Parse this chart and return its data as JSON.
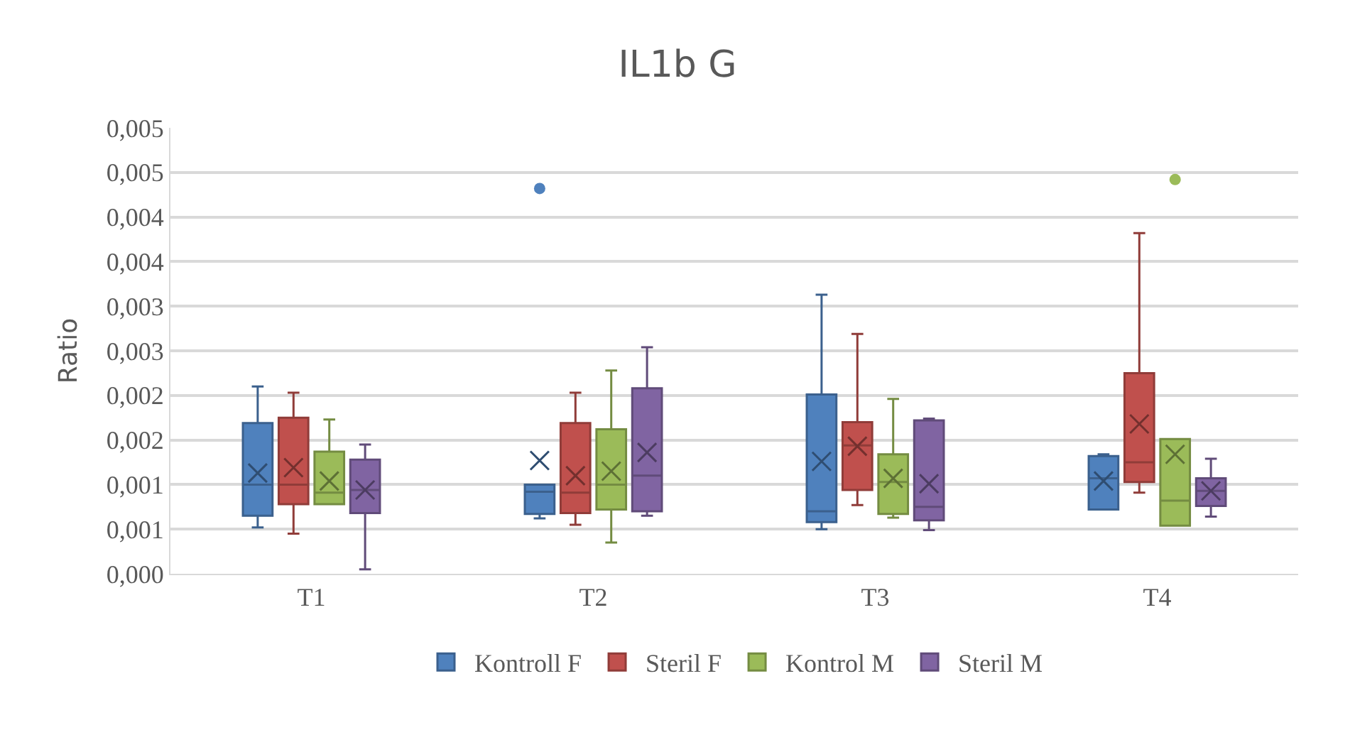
{
  "chart_data": {
    "type": "box",
    "title": "IL1b G",
    "ylabel": "Ratio",
    "categories": [
      "T1",
      "T2",
      "T3",
      "T4"
    ],
    "ylim": [
      0,
      0.005
    ],
    "yticks": [
      {
        "value": 0,
        "label": "0,000"
      },
      {
        "value": 0.0005,
        "label": "0,001"
      },
      {
        "value": 0.001,
        "label": "0,001"
      },
      {
        "value": 0.0015,
        "label": "0,002"
      },
      {
        "value": 0.002,
        "label": "0,002"
      },
      {
        "value": 0.0025,
        "label": "0,003"
      },
      {
        "value": 0.003,
        "label": "0,003"
      },
      {
        "value": 0.0035,
        "label": "0,004"
      },
      {
        "value": 0.004,
        "label": "0,004"
      },
      {
        "value": 0.0045,
        "label": "0,005"
      },
      {
        "value": 0.005,
        "label": "0,005"
      }
    ],
    "grid": "y",
    "legend": "bottom",
    "series": [
      {
        "name": "Kontroll F",
        "color": "#4f81bd",
        "boxes": [
          {
            "low": 0.00052,
            "q1": 0.00065,
            "median": 0.001,
            "q3": 0.00169,
            "high": 0.0021,
            "mean": 0.00113
          },
          {
            "low": 0.00062,
            "q1": 0.00067,
            "median": 0.00092,
            "q3": 0.001,
            "high": 0.001,
            "mean": 0.00127,
            "outliers": [
              0.00432
            ]
          },
          {
            "low": 0.0005,
            "q1": 0.00058,
            "median": 0.0007,
            "q3": 0.00201,
            "high": 0.00313,
            "mean": 0.00126
          },
          {
            "low": 0.00072,
            "q1": 0.00072,
            "median": 0.00107,
            "q3": 0.00132,
            "high": 0.00134,
            "mean": 0.00104
          }
        ]
      },
      {
        "name": "Steril F",
        "color": "#c0504d",
        "boxes": [
          {
            "low": 0.00045,
            "q1": 0.00078,
            "median": 0.001,
            "q3": 0.00175,
            "high": 0.00203,
            "mean": 0.00119
          },
          {
            "low": 0.00055,
            "q1": 0.00068,
            "median": 0.00091,
            "q3": 0.00169,
            "high": 0.00203,
            "mean": 0.0011
          },
          {
            "low": 0.00077,
            "q1": 0.00094,
            "median": 0.00144,
            "q3": 0.0017,
            "high": 0.00269,
            "mean": 0.00143
          },
          {
            "low": 0.00091,
            "q1": 0.00103,
            "median": 0.00125,
            "q3": 0.00225,
            "high": 0.00382,
            "mean": 0.00168
          }
        ]
      },
      {
        "name": "Kontrol M",
        "color": "#9bbb59",
        "boxes": [
          {
            "low": 0.00078,
            "q1": 0.00078,
            "median": 0.00091,
            "q3": 0.00137,
            "high": 0.00173,
            "mean": 0.00104
          },
          {
            "low": 0.00035,
            "q1": 0.00072,
            "median": 0.001,
            "q3": 0.00162,
            "high": 0.00228,
            "mean": 0.00115
          },
          {
            "low": 0.00063,
            "q1": 0.00067,
            "median": 0.00103,
            "q3": 0.00134,
            "high": 0.00196,
            "mean": 0.00107
          },
          {
            "low": 0.00054,
            "q1": 0.00054,
            "median": 0.00082,
            "q3": 0.00151,
            "high": 0.00151,
            "mean": 0.00134,
            "outliers": [
              0.00442
            ]
          }
        ]
      },
      {
        "name": "Steril M",
        "color": "#8064a2",
        "boxes": [
          {
            "low": 5e-05,
            "q1": 0.00068,
            "median": 0.00094,
            "q3": 0.00128,
            "high": 0.00145,
            "mean": 0.00094
          },
          {
            "low": 0.00065,
            "q1": 0.0007,
            "median": 0.0011,
            "q3": 0.00208,
            "high": 0.00254,
            "mean": 0.00136
          },
          {
            "low": 0.00049,
            "q1": 0.0006,
            "median": 0.00075,
            "q3": 0.00172,
            "high": 0.00174,
            "mean": 0.00101
          },
          {
            "low": 0.00064,
            "q1": 0.00076,
            "median": 0.00093,
            "q3": 0.00107,
            "high": 0.00129,
            "mean": 0.00093
          }
        ]
      }
    ]
  }
}
